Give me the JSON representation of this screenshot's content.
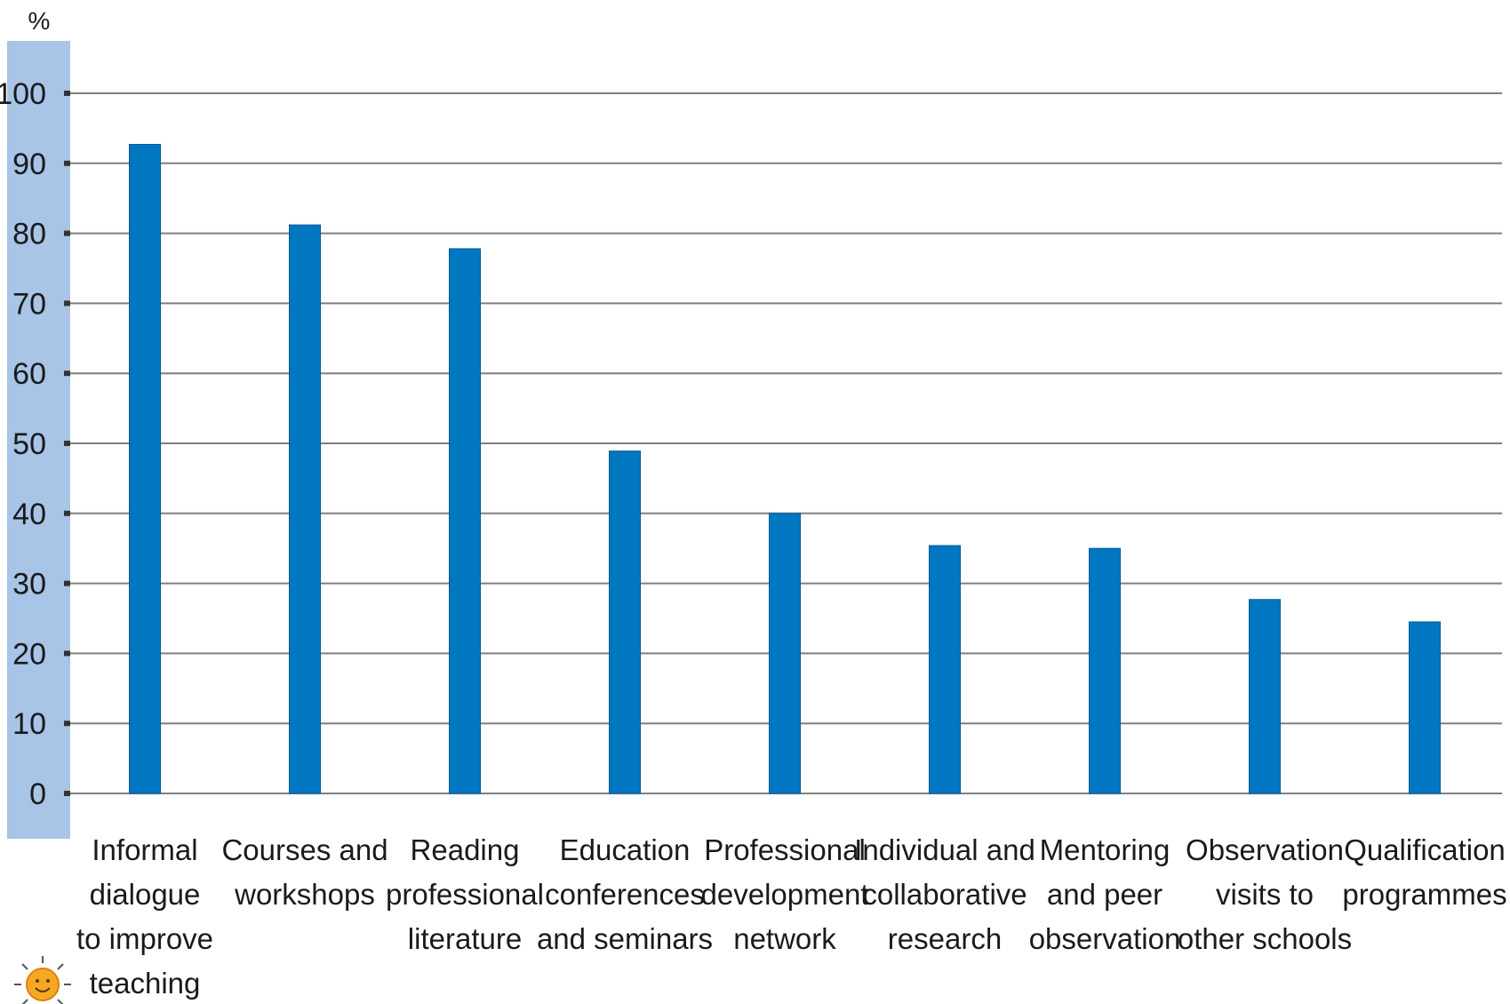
{
  "chart_data": {
    "type": "bar",
    "ylabel": "%",
    "ylim": [
      0,
      100
    ],
    "yticks": [
      0,
      10,
      20,
      30,
      40,
      50,
      60,
      70,
      80,
      90,
      100
    ],
    "grid": true,
    "categories": [
      "Informal dialogue to improve teaching",
      "Courses and workshops",
      "Reading professional literature",
      "Education conferences and seminars",
      "Professional development network",
      "Individual and collaborative research",
      "Mentoring and peer observation",
      "Observation visits to other schools",
      "Qualification programmes"
    ],
    "category_label_lines": [
      [
        "Informal",
        "dialogue",
        "to improve",
        "teaching"
      ],
      [
        "Courses and",
        "workshops"
      ],
      [
        "Reading",
        "professional",
        "literature"
      ],
      [
        "Education",
        "conferences",
        "and seminars"
      ],
      [
        "Professional",
        "development",
        "network"
      ],
      [
        "Individual and",
        "collaborative",
        "research"
      ],
      [
        "Mentoring",
        "and peer",
        "observation"
      ],
      [
        "Observation",
        "visits to",
        "other schools"
      ],
      [
        "Qualification",
        "programmes"
      ]
    ],
    "values": [
      92.7,
      81.2,
      77.8,
      48.9,
      40.0,
      35.4,
      35.0,
      27.7,
      24.5
    ],
    "colors": {
      "bar": "#0077c0",
      "axis_band": "#a8c4e6",
      "grid": "#7f7f7f"
    }
  },
  "decoration": {
    "corner_icon": "sun-icon"
  }
}
